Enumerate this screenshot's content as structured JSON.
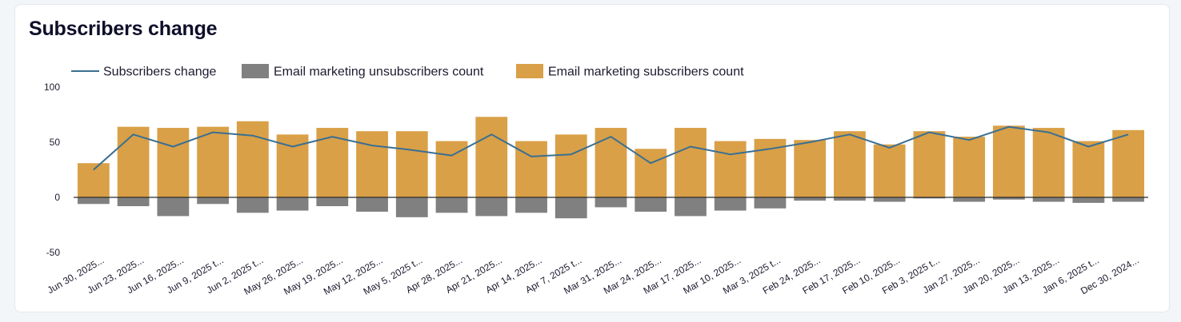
{
  "card": {
    "title": "Subscribers change"
  },
  "colors": {
    "line": "#3a6f92",
    "unsubscribers": "#808080",
    "subscribers": "#d9a047",
    "zero_line": "#2b2b2b"
  },
  "chart_data": {
    "type": "bar",
    "title": "Subscribers change",
    "xlabel": "",
    "ylabel": "",
    "ylim": [
      -50,
      100
    ],
    "yticks": [
      100,
      50,
      0,
      -50
    ],
    "legend": "top-left",
    "grid": false,
    "categories": [
      "Jun 30, 2025...",
      "Jun 23, 2025...",
      "Jun 16, 2025...",
      "Jun 9, 2025 t...",
      "Jun 2, 2025 t...",
      "May 26, 2025...",
      "May 19, 2025...",
      "May 12, 2025...",
      "May 5, 2025 t...",
      "Apr 28, 2025...",
      "Apr 21, 2025...",
      "Apr 14, 2025...",
      "Apr 7, 2025 t...",
      "Mar 31, 2025...",
      "Mar 24, 2025...",
      "Mar 17, 2025...",
      "Mar 10, 2025...",
      "Mar 3, 2025 t...",
      "Feb 24, 2025...",
      "Feb 17, 2025...",
      "Feb 10, 2025...",
      "Feb 3, 2025 t...",
      "Jan 27, 2025...",
      "Jan 20, 2025...",
      "Jan 13, 2025...",
      "Jan 6, 2025 t...",
      "Dec 30, 2024..."
    ],
    "series": [
      {
        "name": "Subscribers change",
        "type": "line",
        "values": [
          25,
          57,
          46,
          59,
          56,
          46,
          55,
          47,
          43,
          38,
          57,
          37,
          39,
          55,
          31,
          46,
          39,
          44,
          50,
          57,
          45,
          59,
          52,
          64,
          59,
          46,
          57
        ]
      },
      {
        "name": "Email marketing unsubscribers count",
        "type": "bar",
        "values": [
          -6,
          -8,
          -17,
          -6,
          -14,
          -12,
          -8,
          -13,
          -18,
          -14,
          -17,
          -14,
          -19,
          -9,
          -13,
          -17,
          -12,
          -10,
          -3,
          -3,
          -4,
          -1,
          -4,
          -2,
          -4,
          -5,
          -4
        ]
      },
      {
        "name": "Email marketing subscribers count",
        "type": "bar",
        "values": [
          31,
          64,
          63,
          64,
          69,
          57,
          63,
          60,
          60,
          51,
          73,
          51,
          57,
          63,
          44,
          63,
          51,
          53,
          52,
          60,
          48,
          60,
          55,
          65,
          63,
          51,
          61
        ]
      }
    ]
  }
}
